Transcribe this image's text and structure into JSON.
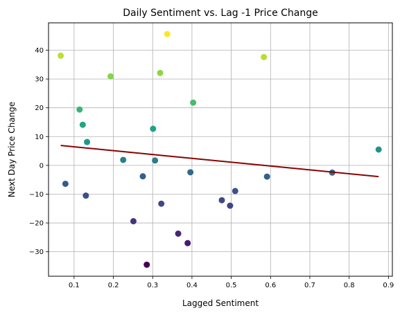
{
  "chart_data": {
    "type": "scatter",
    "title": "Daily Sentiment vs. Lag -1 Price Change",
    "xlabel": "Lagged Sentiment",
    "ylabel": "Next Day Price Change",
    "xlim": [
      0.035,
      0.91
    ],
    "ylim": [
      -38.5,
      49.5
    ],
    "xticks": [
      0.1,
      0.2,
      0.3,
      0.4,
      0.5,
      0.6,
      0.7,
      0.8,
      0.9
    ],
    "xtick_labels": [
      "0.1",
      "0.2",
      "0.3",
      "0.4",
      "0.5",
      "0.6",
      "0.7",
      "0.8",
      "0.9"
    ],
    "yticks": [
      -30,
      -20,
      -10,
      0,
      10,
      20,
      30,
      40
    ],
    "ytick_labels": [
      "−30",
      "−20",
      "−10",
      "0",
      "10",
      "20",
      "30",
      "40"
    ],
    "grid": true,
    "colormap": "viridis",
    "color_range": [
      -34.5,
      45.6
    ],
    "points": [
      {
        "x": 0.066,
        "y": 38.1
      },
      {
        "x": 0.078,
        "y": -6.4
      },
      {
        "x": 0.114,
        "y": 19.4
      },
      {
        "x": 0.122,
        "y": 14.1
      },
      {
        "x": 0.13,
        "y": -10.5
      },
      {
        "x": 0.133,
        "y": 8.1
      },
      {
        "x": 0.193,
        "y": 30.9
      },
      {
        "x": 0.225,
        "y": 1.9
      },
      {
        "x": 0.251,
        "y": -19.4
      },
      {
        "x": 0.275,
        "y": -3.8
      },
      {
        "x": 0.285,
        "y": -34.5
      },
      {
        "x": 0.301,
        "y": 12.7
      },
      {
        "x": 0.306,
        "y": 1.7
      },
      {
        "x": 0.319,
        "y": 32.1
      },
      {
        "x": 0.322,
        "y": -13.3
      },
      {
        "x": 0.337,
        "y": 45.6
      },
      {
        "x": 0.365,
        "y": -23.7
      },
      {
        "x": 0.389,
        "y": -27.0
      },
      {
        "x": 0.396,
        "y": -2.4
      },
      {
        "x": 0.403,
        "y": 21.8
      },
      {
        "x": 0.476,
        "y": -12.1
      },
      {
        "x": 0.497,
        "y": -14.0
      },
      {
        "x": 0.51,
        "y": -8.9
      },
      {
        "x": 0.583,
        "y": 37.6
      },
      {
        "x": 0.591,
        "y": -3.9
      },
      {
        "x": 0.757,
        "y": -2.5
      },
      {
        "x": 0.875,
        "y": 5.5
      }
    ],
    "trend_line": {
      "x": [
        0.066,
        0.875
      ],
      "y": [
        6.9,
        -3.9
      ],
      "color": "#8b0000"
    },
    "colors": {
      "grid": "#b0b0b0",
      "axis": "#000000"
    }
  }
}
